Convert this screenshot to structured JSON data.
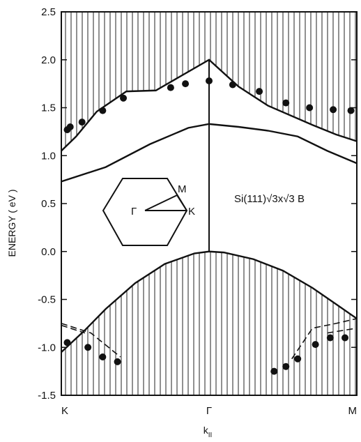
{
  "chart_data": {
    "type": "line",
    "title": "",
    "xlabel": "k",
    "xlabel_subscript": "II",
    "ylabel": "ENERGY ( eV )",
    "ylim": [
      -1.5,
      2.5
    ],
    "xlim": [
      0,
      1
    ],
    "y_ticks": [
      "2.5",
      "2.0",
      "1.5",
      "1.0",
      "0.5",
      "0.0",
      "-0.5",
      "-1.0",
      "-1.5"
    ],
    "x_ticks": [
      {
        "label": "K",
        "x": 0
      },
      {
        "label": "Γ",
        "x": 0.5
      },
      {
        "label": "M",
        "x": 1
      }
    ],
    "annotation": "Si(111)√3x√3 B",
    "inset": {
      "description_labels": [
        "Γ",
        "M",
        "K"
      ]
    },
    "curves": {
      "conduction_band_edge": {
        "x": [
          0,
          0.05,
          0.12,
          0.22,
          0.32,
          0.5,
          0.6,
          0.7,
          0.85,
          0.93,
          1
        ],
        "y": [
          1.05,
          1.2,
          1.46,
          1.67,
          1.68,
          2.0,
          1.72,
          1.52,
          1.32,
          1.22,
          1.15
        ]
      },
      "surface_band": {
        "x": [
          0,
          0.15,
          0.3,
          0.43,
          0.5,
          0.6,
          0.7,
          0.8,
          0.9,
          1
        ],
        "y": [
          0.73,
          0.88,
          1.12,
          1.29,
          1.33,
          1.3,
          1.26,
          1.2,
          1.05,
          0.92
        ]
      },
      "valence_band_edge": {
        "x": [
          0,
          0.08,
          0.15,
          0.25,
          0.35,
          0.45,
          0.5,
          0.55,
          0.65,
          0.75,
          0.85,
          0.93,
          1
        ],
        "y": [
          -1.05,
          -0.82,
          -0.6,
          -0.33,
          -0.13,
          -0.02,
          0.0,
          -0.01,
          -0.08,
          -0.2,
          -0.38,
          -0.55,
          -0.7
        ]
      },
      "dashed_left_1": {
        "x": [
          0,
          0.1,
          0.2
        ],
        "y": [
          -0.75,
          -0.85,
          -1.1
        ]
      },
      "dashed_left_2": {
        "x": [
          0,
          0.08
        ],
        "y": [
          -0.77,
          -0.85
        ]
      },
      "dashed_right_1": {
        "x": [
          0.78,
          0.85,
          0.93,
          1
        ],
        "y": [
          -1.12,
          -0.8,
          -0.75,
          -0.7
        ]
      },
      "dashed_right_2": {
        "x": [
          0.9,
          1
        ],
        "y": [
          -0.85,
          -0.8
        ]
      }
    },
    "experimental_points": {
      "x": [
        0.02,
        0.03,
        0.07,
        0.14,
        0.21,
        0.37,
        0.42,
        0.5,
        0.58,
        0.67,
        0.76,
        0.84,
        0.92,
        0.98,
        0.02,
        0.09,
        0.14,
        0.19,
        0.72,
        0.76,
        0.8,
        0.86,
        0.91,
        0.96
      ],
      "y": [
        1.27,
        1.3,
        1.35,
        1.47,
        1.6,
        1.71,
        1.75,
        1.78,
        1.74,
        1.67,
        1.55,
        1.5,
        1.48,
        1.47,
        -0.95,
        -1.0,
        -1.1,
        -1.15,
        -1.25,
        -1.2,
        -1.12,
        -0.97,
        -0.9,
        -0.9
      ]
    },
    "grid": false
  }
}
